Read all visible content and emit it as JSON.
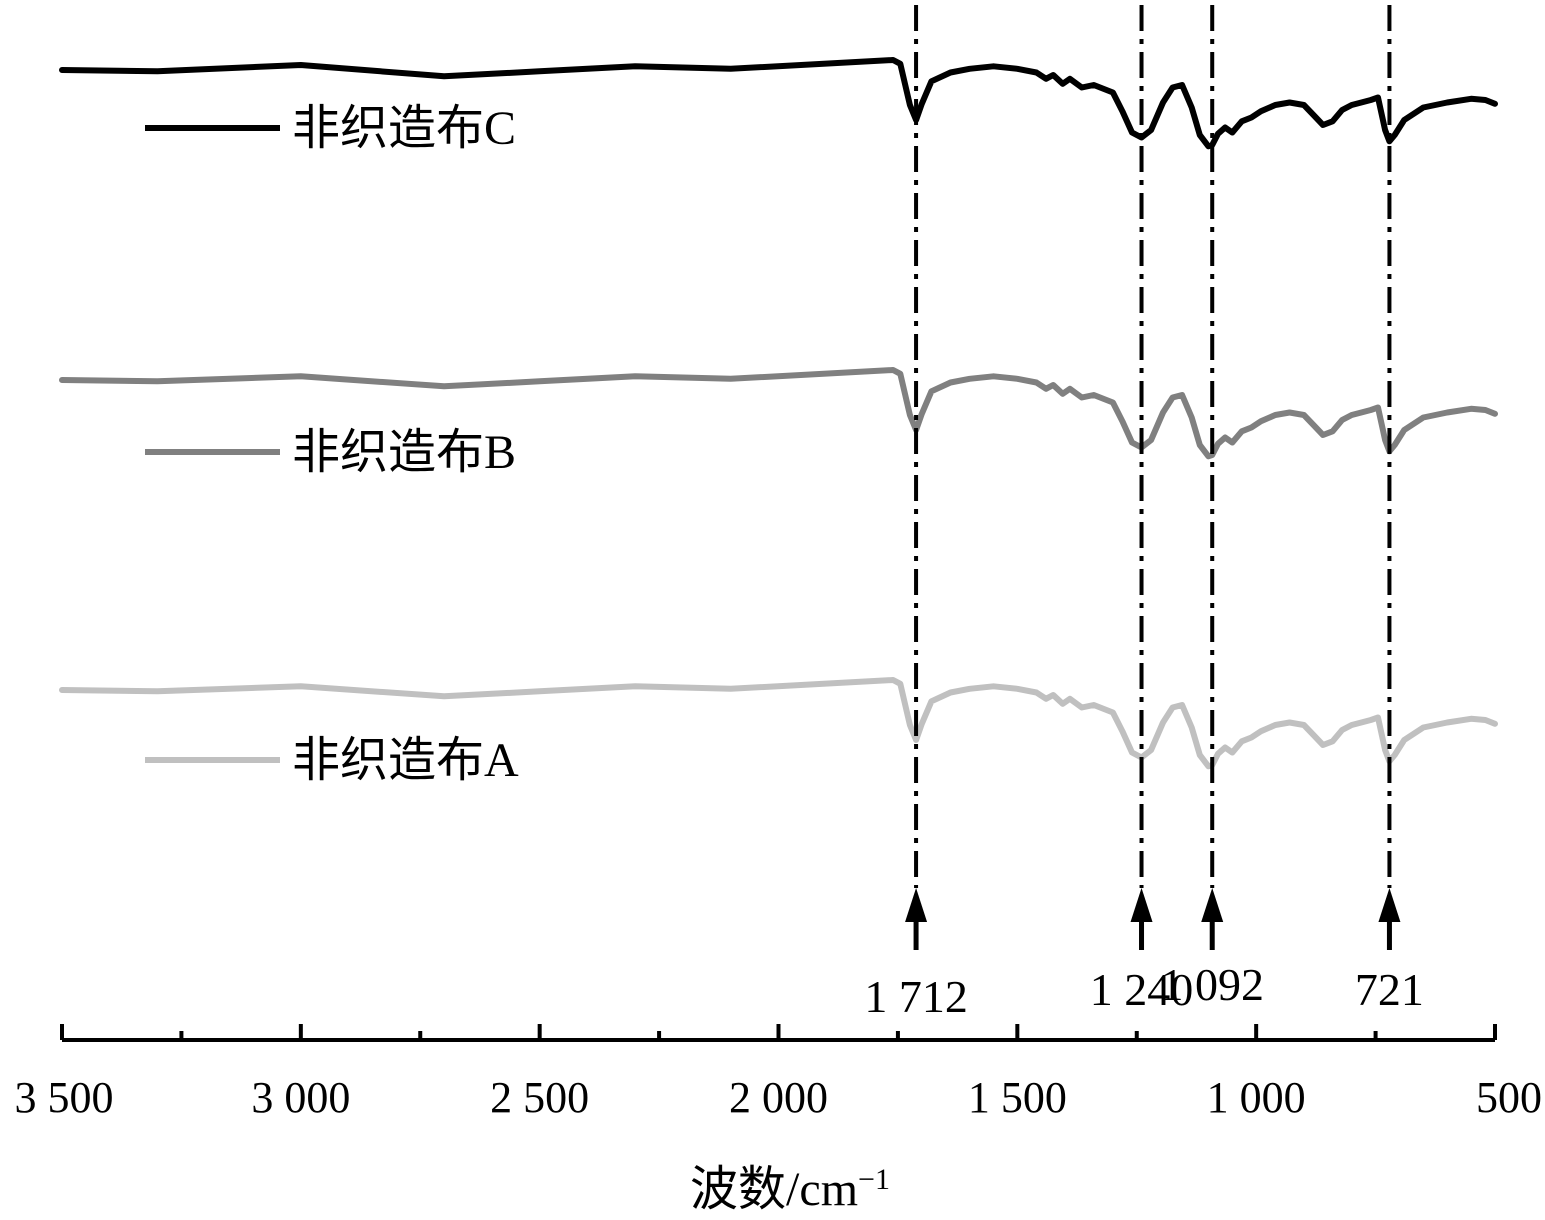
{
  "chart_data": {
    "type": "line",
    "title": "",
    "xlabel": "波数/cm",
    "xlabel_superscript": "−1",
    "ylabel": "",
    "xlim": [
      3500,
      500
    ],
    "x_reversed": true,
    "y_axis_shown": false,
    "grid": false,
    "legend_placement": "inline-left",
    "x_ticks": [
      {
        "value": 3500,
        "label": "3 500"
      },
      {
        "value": 3000,
        "label": "3 000"
      },
      {
        "value": 2500,
        "label": "2 500"
      },
      {
        "value": 2000,
        "label": "2 000"
      },
      {
        "value": 1500,
        "label": "1 500"
      },
      {
        "value": 1000,
        "label": "1 000"
      },
      {
        "value": 500,
        "label": "500"
      }
    ],
    "x_minor_ticks": [
      3250,
      2750,
      2250,
      1750,
      1250,
      750
    ],
    "peaks": [
      {
        "value": 1712,
        "label": "1 712"
      },
      {
        "value": 1240,
        "label": "1 240"
      },
      {
        "value": 1092,
        "label": "1 092"
      },
      {
        "value": 721,
        "label": "721"
      }
    ],
    "series": [
      {
        "name": "非织造布C",
        "color": "#000000",
        "offset": 2,
        "x": [
          3500,
          3300,
          3000,
          2700,
          2500,
          2300,
          2100,
          1760,
          1745,
          1725,
          1712,
          1700,
          1680,
          1640,
          1600,
          1550,
          1500,
          1460,
          1440,
          1425,
          1405,
          1390,
          1365,
          1340,
          1300,
          1280,
          1260,
          1240,
          1220,
          1195,
          1175,
          1155,
          1135,
          1118,
          1100,
          1092,
          1080,
          1065,
          1050,
          1030,
          1010,
          990,
          960,
          930,
          900,
          880,
          860,
          840,
          820,
          800,
          780,
          760,
          745,
          730,
          721,
          710,
          690,
          650,
          600,
          550,
          520,
          500
        ],
        "y": [
          88,
          87,
          92,
          83,
          87,
          91,
          89,
          96,
          93,
          60,
          48,
          61,
          79,
          86,
          89,
          91,
          89,
          86,
          81,
          84,
          77,
          81,
          74,
          76,
          70,
          55,
          38,
          34,
          40,
          62,
          74,
          76,
          58,
          36,
          27,
          28,
          37,
          42,
          38,
          47,
          50,
          55,
          60,
          62,
          60,
          52,
          44,
          47,
          56,
          60,
          62,
          64,
          66,
          40,
          31,
          36,
          48,
          58,
          62,
          65,
          64,
          61
        ]
      },
      {
        "name": "非织造布B",
        "color": "#808080",
        "offset": 1,
        "x": [
          3500,
          3300,
          3000,
          2700,
          2500,
          2300,
          2100,
          1760,
          1745,
          1725,
          1712,
          1700,
          1680,
          1640,
          1600,
          1550,
          1500,
          1460,
          1440,
          1425,
          1405,
          1390,
          1365,
          1340,
          1300,
          1280,
          1260,
          1240,
          1220,
          1195,
          1175,
          1155,
          1135,
          1118,
          1100,
          1092,
          1080,
          1065,
          1050,
          1030,
          1010,
          990,
          960,
          930,
          900,
          880,
          860,
          840,
          820,
          800,
          780,
          760,
          745,
          730,
          721,
          710,
          690,
          650,
          600,
          550,
          520,
          500
        ],
        "y": [
          88,
          87,
          91,
          83,
          87,
          91,
          89,
          96,
          93,
          60,
          48,
          61,
          79,
          86,
          89,
          91,
          89,
          86,
          81,
          84,
          77,
          81,
          74,
          76,
          70,
          55,
          38,
          34,
          40,
          62,
          74,
          76,
          58,
          36,
          27,
          28,
          37,
          42,
          38,
          47,
          50,
          55,
          60,
          62,
          60,
          52,
          44,
          47,
          56,
          60,
          62,
          64,
          66,
          40,
          31,
          36,
          48,
          58,
          62,
          65,
          64,
          61
        ]
      },
      {
        "name": "非织造布A",
        "color": "#c0c0c0",
        "offset": 0,
        "x": [
          3500,
          3300,
          3000,
          2700,
          2500,
          2300,
          2100,
          1760,
          1745,
          1725,
          1712,
          1700,
          1680,
          1640,
          1600,
          1550,
          1500,
          1460,
          1440,
          1425,
          1405,
          1390,
          1365,
          1340,
          1300,
          1280,
          1260,
          1240,
          1220,
          1195,
          1175,
          1155,
          1135,
          1118,
          1100,
          1092,
          1080,
          1065,
          1050,
          1030,
          1010,
          990,
          960,
          930,
          900,
          880,
          860,
          840,
          820,
          800,
          780,
          760,
          745,
          730,
          721,
          710,
          690,
          650,
          600,
          550,
          520,
          500
        ],
        "y": [
          88,
          87,
          91,
          83,
          87,
          91,
          89,
          96,
          93,
          60,
          48,
          61,
          79,
          86,
          89,
          91,
          89,
          86,
          81,
          84,
          77,
          81,
          74,
          76,
          70,
          55,
          38,
          34,
          40,
          62,
          74,
          76,
          58,
          36,
          27,
          28,
          37,
          42,
          38,
          47,
          50,
          55,
          60,
          62,
          60,
          52,
          44,
          47,
          56,
          60,
          62,
          64,
          66,
          40,
          31,
          36,
          48,
          58,
          62,
          65,
          64,
          61
        ]
      }
    ]
  }
}
